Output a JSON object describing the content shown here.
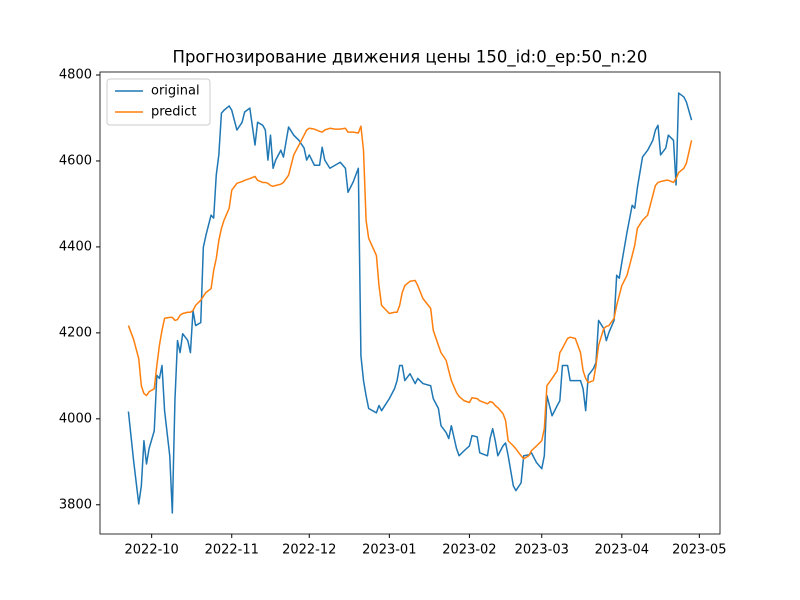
{
  "chart_data": {
    "type": "line",
    "title": "Прогнозирование движения цены 150_id:0_ep:50_n:20",
    "x": [
      "2022-09-22",
      "2022-09-24",
      "2022-09-26",
      "2022-09-27",
      "2022-09-28",
      "2022-09-29",
      "2022-09-30",
      "2022-10-02",
      "2022-10-03",
      "2022-10-04",
      "2022-10-05",
      "2022-10-06",
      "2022-10-08",
      "2022-10-09",
      "2022-10-10",
      "2022-10-11",
      "2022-10-12",
      "2022-10-13",
      "2022-10-15",
      "2022-10-16",
      "2022-10-17",
      "2022-10-18",
      "2022-10-20",
      "2022-10-21",
      "2022-10-22",
      "2022-10-24",
      "2022-10-25",
      "2022-10-26",
      "2022-10-27",
      "2022-10-28",
      "2022-10-29",
      "2022-10-31",
      "2022-11-01",
      "2022-11-03",
      "2022-11-05",
      "2022-11-06",
      "2022-11-08",
      "2022-11-10",
      "2022-11-11",
      "2022-11-13",
      "2022-11-14",
      "2022-11-15",
      "2022-11-16",
      "2022-11-17",
      "2022-11-18",
      "2022-11-20",
      "2022-11-21",
      "2022-11-23",
      "2022-11-25",
      "2022-11-27",
      "2022-11-29",
      "2022-11-30",
      "2022-12-01",
      "2022-12-03",
      "2022-12-05",
      "2022-12-06",
      "2022-12-07",
      "2022-12-09",
      "2022-12-11",
      "2022-12-13",
      "2022-12-15",
      "2022-12-16",
      "2022-12-18",
      "2022-12-20",
      "2022-12-21",
      "2022-12-22",
      "2022-12-23",
      "2022-12-24",
      "2022-12-27",
      "2022-12-28",
      "2022-12-29",
      "2023-01-01",
      "2023-01-03",
      "2023-01-04",
      "2023-01-05",
      "2023-01-06",
      "2023-01-07",
      "2023-01-09",
      "2023-01-11",
      "2023-01-12",
      "2023-01-14",
      "2023-01-17",
      "2023-01-18",
      "2023-01-20",
      "2023-01-21",
      "2023-01-23",
      "2023-01-24",
      "2023-01-25",
      "2023-01-27",
      "2023-01-28",
      "2023-01-30",
      "2023-02-01",
      "2023-02-02",
      "2023-02-04",
      "2023-02-05",
      "2023-02-08",
      "2023-02-09",
      "2023-02-10",
      "2023-02-11",
      "2023-02-12",
      "2023-02-14",
      "2023-02-15",
      "2023-02-16",
      "2023-02-18",
      "2023-02-19",
      "2023-02-21",
      "2023-02-22",
      "2023-02-24",
      "2023-02-25",
      "2023-02-27",
      "2023-03-01",
      "2023-03-02",
      "2023-03-03",
      "2023-03-05",
      "2023-03-07",
      "2023-03-08",
      "2023-03-09",
      "2023-03-11",
      "2023-03-12",
      "2023-03-14",
      "2023-03-16",
      "2023-03-17",
      "2023-03-18",
      "2023-03-19",
      "2023-03-21",
      "2023-03-22",
      "2023-03-23",
      "2023-03-25",
      "2023-03-26",
      "2023-03-27",
      "2023-03-29",
      "2023-03-30",
      "2023-03-31",
      "2023-04-01",
      "2023-04-03",
      "2023-04-05",
      "2023-04-06",
      "2023-04-07",
      "2023-04-09",
      "2023-04-11",
      "2023-04-13",
      "2023-04-14",
      "2023-04-15",
      "2023-04-16",
      "2023-04-18",
      "2023-04-19",
      "2023-04-21",
      "2023-04-22",
      "2023-04-23",
      "2023-04-25",
      "2023-04-26",
      "2023-04-28"
    ],
    "series": [
      {
        "name": "original",
        "color": "#1f77b4",
        "values": [
          4017,
          3903,
          3802,
          3844,
          3949,
          3895,
          3931,
          3972,
          4101,
          4094,
          4124,
          4019,
          3914,
          3781,
          4042,
          4182,
          4154,
          4198,
          4182,
          4154,
          4252,
          4217,
          4224,
          4399,
          4427,
          4474,
          4467,
          4567,
          4614,
          4711,
          4718,
          4728,
          4718,
          4672,
          4690,
          4714,
          4723,
          4637,
          4690,
          4683,
          4672,
          4602,
          4660,
          4583,
          4602,
          4625,
          4609,
          4679,
          4660,
          4648,
          4630,
          4602,
          4614,
          4590,
          4590,
          4632,
          4602,
          4583,
          4590,
          4597,
          4583,
          4527,
          4551,
          4583,
          4147,
          4089,
          4054,
          4024,
          4014,
          4031,
          4019,
          4047,
          4070,
          4089,
          4124,
          4124,
          4089,
          4105,
          4082,
          4094,
          4082,
          4077,
          4047,
          4024,
          3984,
          3968,
          3954,
          3984,
          3931,
          3914,
          3926,
          3937,
          3961,
          3958,
          3921,
          3914,
          3954,
          3977,
          3949,
          3914,
          3937,
          3944,
          3914,
          3844,
          3833,
          3851,
          3914,
          3916,
          3921,
          3898,
          3884,
          3914,
          4054,
          4007,
          4031,
          4042,
          4124,
          4124,
          4089,
          4089,
          4089,
          4070,
          4019,
          4101,
          4117,
          4131,
          4229,
          4210,
          4182,
          4201,
          4229,
          4334,
          4327,
          4364,
          4434,
          4497,
          4490,
          4537,
          4609,
          4625,
          4648,
          4672,
          4683,
          4614,
          4630,
          4660,
          4648,
          4544,
          4758,
          4749,
          4737,
          4695
        ]
      },
      {
        "name": "predict",
        "color": "#ff7f0e",
        "values": [
          4217,
          4185,
          4140,
          4077,
          4059,
          4054,
          4063,
          4070,
          4124,
          4171,
          4206,
          4234,
          4236,
          4236,
          4229,
          4231,
          4241,
          4245,
          4248,
          4248,
          4252,
          4264,
          4276,
          4285,
          4294,
          4303,
          4345,
          4373,
          4415,
          4443,
          4462,
          4490,
          4532,
          4548,
          4552,
          4555,
          4559,
          4564,
          4555,
          4550,
          4550,
          4548,
          4543,
          4541,
          4543,
          4546,
          4550,
          4567,
          4614,
          4637,
          4660,
          4672,
          4676,
          4674,
          4669,
          4667,
          4672,
          4676,
          4674,
          4674,
          4676,
          4667,
          4667,
          4665,
          4681,
          4625,
          4462,
          4420,
          4380,
          4310,
          4264,
          4245,
          4248,
          4248,
          4264,
          4294,
          4310,
          4320,
          4322,
          4310,
          4280,
          4257,
          4206,
          4171,
          4154,
          4136,
          4112,
          4089,
          4061,
          4052,
          4042,
          4038,
          4049,
          4047,
          4042,
          4035,
          4040,
          4038,
          4031,
          4026,
          4012,
          3996,
          3949,
          3937,
          3930,
          3914,
          3907,
          3914,
          3926,
          3937,
          3949,
          3977,
          4077,
          4094,
          4112,
          4154,
          4164,
          4187,
          4190,
          4187,
          4154,
          4112,
          4094,
          4084,
          4089,
          4124,
          4171,
          4210,
          4215,
          4217,
          4234,
          4264,
          4287,
          4310,
          4334,
          4380,
          4404,
          4443,
          4462,
          4474,
          4520,
          4543,
          4550,
          4552,
          4555,
          4555,
          4550,
          4559,
          4573,
          4583,
          4595,
          4648
        ]
      }
    ],
    "xlim": [
      "2022-09-11",
      "2023-05-09"
    ],
    "xticks": [
      "2022-10",
      "2022-11",
      "2022-12",
      "2023-01",
      "2023-02",
      "2023-03",
      "2023-04",
      "2023-05"
    ],
    "ylim": [
      3732,
      4807
    ],
    "yticks": [
      3800,
      4000,
      4200,
      4400,
      4600,
      4800
    ],
    "legend": "upper left"
  }
}
